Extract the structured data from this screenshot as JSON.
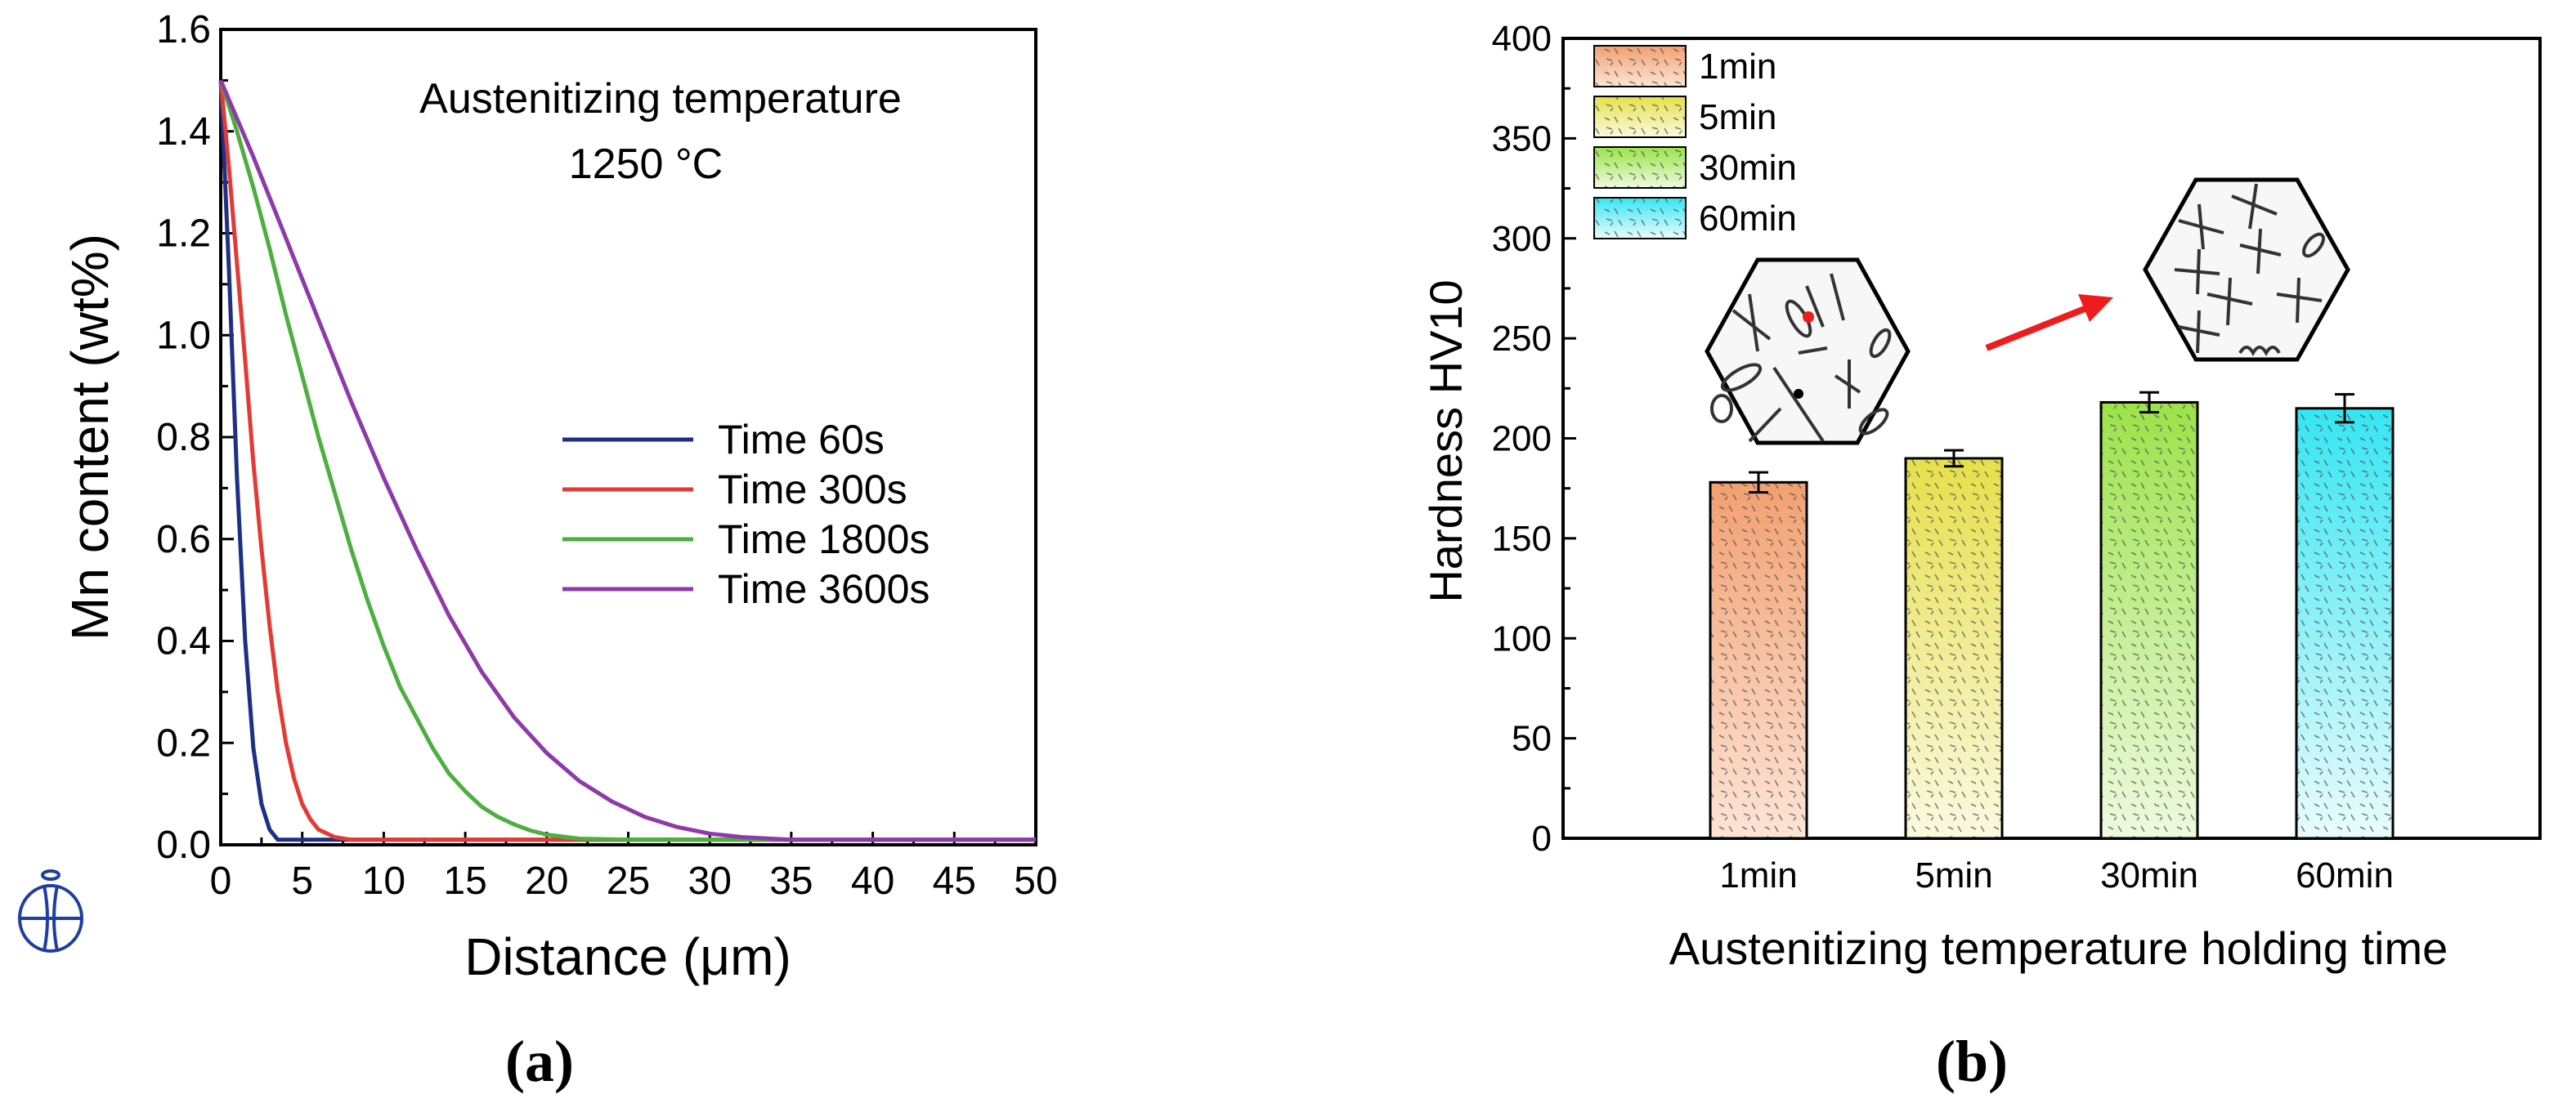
{
  "colors": {
    "axis": "#000000",
    "line_60s": "#1f2f86",
    "line_300s": "#e33a35",
    "line_1800s": "#4caf3f",
    "line_3600s": "#8e3aa8",
    "bar_1min_top": "#f2a070",
    "bar_1min_bottom": "#fde4d5",
    "bar_5min_top": "#e6e04a",
    "bar_5min_bottom": "#fbf9e0",
    "bar_30min_top": "#9be348",
    "bar_30min_bottom": "#eefadf",
    "bar_60min_top": "#34e6f2",
    "bar_60min_bottom": "#eafcfd",
    "arrow": "#ee1c1c",
    "logo": "#1e3ea0"
  },
  "panel_a": {
    "label": "(a)",
    "annotation_line1": "Austenitizing temperature",
    "annotation_line2": "1250 °C",
    "logo_icon": "journal-logo-icon"
  },
  "panel_b": {
    "label": "(b)",
    "inset_icons": [
      "microstructure-hexagon-before-icon",
      "microstructure-hexagon-after-icon"
    ]
  },
  "chart_data": [
    {
      "type": "line",
      "title": "",
      "xlabel": "Distance (μm)",
      "ylabel": "Mn content  (wt%)",
      "xlim": [
        0,
        50
      ],
      "ylim": [
        0,
        1.6
      ],
      "xticks": [
        "0",
        "5",
        "10",
        "15",
        "20",
        "25",
        "30",
        "35",
        "40",
        "45",
        "50"
      ],
      "yticks": [
        "0.0",
        "0.2",
        "0.4",
        "0.6",
        "0.8",
        "1.0",
        "1.2",
        "1.4",
        "1.6"
      ],
      "grid": false,
      "legend_position": "center-right",
      "series": [
        {
          "name": "Time 60s",
          "color": "#1f2f86",
          "x": [
            0,
            0.5,
            1,
            1.5,
            2,
            2.5,
            3,
            3.5,
            4,
            5,
            6,
            10,
            20,
            50
          ],
          "y": [
            1.5,
            1.13,
            0.72,
            0.4,
            0.19,
            0.08,
            0.03,
            0.01,
            0.01,
            0.01,
            0.01,
            0.01,
            0.01,
            0.01
          ]
        },
        {
          "name": "Time 300s",
          "color": "#e33a35",
          "x": [
            0,
            0.5,
            1,
            1.5,
            2,
            2.5,
            3,
            3.5,
            4,
            4.5,
            5,
            5.5,
            6,
            7,
            8,
            10,
            20,
            50
          ],
          "y": [
            1.5,
            1.33,
            1.14,
            0.95,
            0.75,
            0.58,
            0.43,
            0.3,
            0.2,
            0.13,
            0.08,
            0.05,
            0.03,
            0.015,
            0.01,
            0.01,
            0.01,
            0.01
          ]
        },
        {
          "name": "Time 1800s",
          "color": "#4caf3f",
          "x": [
            0,
            1,
            2,
            3,
            4,
            5,
            6,
            7,
            8,
            9,
            10,
            11,
            12,
            13,
            14,
            15,
            16,
            17,
            18,
            19,
            20,
            22,
            25,
            30,
            50
          ],
          "y": [
            1.5,
            1.4,
            1.29,
            1.17,
            1.04,
            0.92,
            0.8,
            0.69,
            0.58,
            0.48,
            0.39,
            0.31,
            0.25,
            0.19,
            0.14,
            0.105,
            0.075,
            0.055,
            0.04,
            0.028,
            0.02,
            0.012,
            0.01,
            0.01,
            0.01
          ]
        },
        {
          "name": "Time 3600s",
          "color": "#8e3aa8",
          "x": [
            0,
            2,
            4,
            6,
            8,
            10,
            12,
            14,
            16,
            18,
            20,
            22,
            24,
            26,
            28,
            30,
            32,
            35,
            40,
            50
          ],
          "y": [
            1.5,
            1.35,
            1.19,
            1.03,
            0.87,
            0.72,
            0.58,
            0.45,
            0.34,
            0.25,
            0.18,
            0.125,
            0.085,
            0.055,
            0.035,
            0.022,
            0.015,
            0.01,
            0.01,
            0.01
          ]
        }
      ]
    },
    {
      "type": "bar",
      "title": "",
      "xlabel": "Austenitizing temperature holding time",
      "ylabel": "Hardness HV10",
      "categories": [
        "1min",
        "5min",
        "30min",
        "60min"
      ],
      "values": [
        178,
        190,
        218,
        215
      ],
      "errors": [
        5,
        4,
        5,
        7
      ],
      "ylim": [
        0,
        400
      ],
      "yticks": [
        "0",
        "50",
        "100",
        "150",
        "200",
        "250",
        "300",
        "350",
        "400"
      ],
      "grid": false,
      "legend_position": "top-left",
      "legend": [
        "1min",
        "5min",
        "30min",
        "60min"
      ]
    }
  ]
}
